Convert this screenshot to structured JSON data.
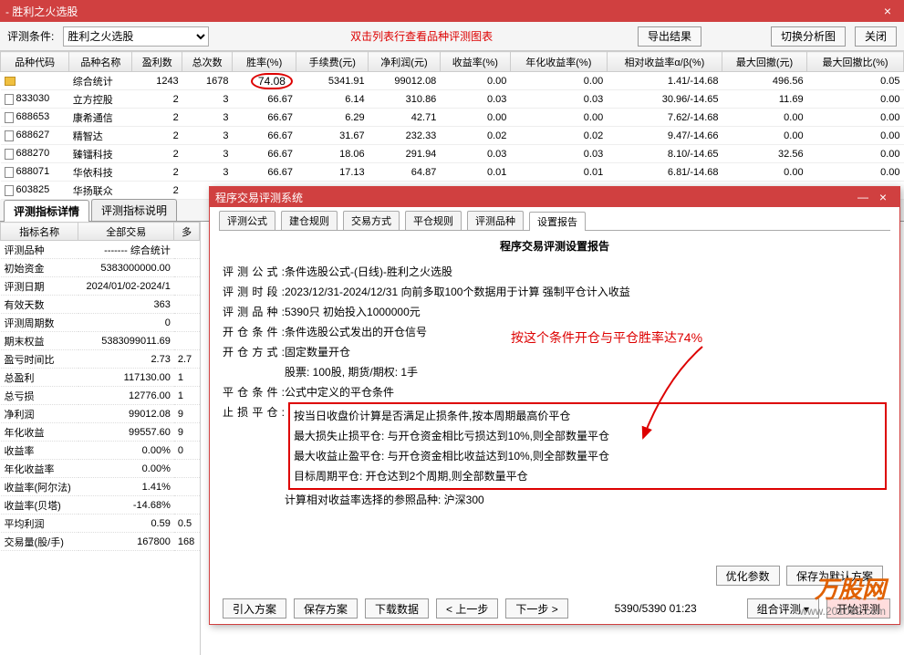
{
  "window": {
    "title": "- 胜利之火选股",
    "close": "×"
  },
  "toolbar": {
    "cond_label": "评测条件:",
    "dropdown": "胜利之火选股",
    "hint": "双击列表行查看品种评测图表",
    "export": "导出结果",
    "switch": "切换分析图",
    "close": "关闭"
  },
  "columns": [
    "品种代码",
    "品种名称",
    "盈利数",
    "总次数",
    "胜率(%)",
    "手续费(元)",
    "净利润(元)",
    "收益率(%)",
    "年化收益率(%)",
    "相对收益率α/β(%)",
    "最大回撤(元)",
    "最大回撤比(%)"
  ],
  "rows": [
    {
      "ico": "folder",
      "code": "",
      "name": "综合统计",
      "win": "1243",
      "total": "1678",
      "rate": "74.08",
      "fee": "5341.91",
      "profit": "99012.08",
      "ret": "0.00",
      "ann": "0.00",
      "rel": "1.41/-14.68",
      "dd": "496.56",
      "ddr": "0.05",
      "hl": true
    },
    {
      "ico": "file",
      "code": "833030",
      "name": "立方控股",
      "win": "2",
      "total": "3",
      "rate": "66.67",
      "fee": "6.14",
      "profit": "310.86",
      "ret": "0.03",
      "ann": "0.03",
      "rel": "30.96/-14.65",
      "dd": "11.69",
      "ddr": "0.00"
    },
    {
      "ico": "file",
      "code": "688653",
      "name": "康希通信",
      "win": "2",
      "total": "3",
      "rate": "66.67",
      "fee": "6.29",
      "profit": "42.71",
      "ret": "0.00",
      "ann": "0.00",
      "rel": "7.62/-14.68",
      "dd": "0.00",
      "ddr": "0.00"
    },
    {
      "ico": "file",
      "code": "688627",
      "name": "精智达",
      "win": "2",
      "total": "3",
      "rate": "66.67",
      "fee": "31.67",
      "profit": "232.33",
      "ret": "0.02",
      "ann": "0.02",
      "rel": "9.47/-14.66",
      "dd": "0.00",
      "ddr": "0.00"
    },
    {
      "ico": "file",
      "code": "688270",
      "name": "臻镭科技",
      "win": "2",
      "total": "3",
      "rate": "66.67",
      "fee": "18.06",
      "profit": "291.94",
      "ret": "0.03",
      "ann": "0.03",
      "rel": "8.10/-14.65",
      "dd": "32.56",
      "ddr": "0.00"
    },
    {
      "ico": "file",
      "code": "688071",
      "name": "华依科技",
      "win": "2",
      "total": "3",
      "rate": "66.67",
      "fee": "17.13",
      "profit": "64.87",
      "ret": "0.01",
      "ann": "0.01",
      "rel": "6.81/-14.68",
      "dd": "0.00",
      "ddr": "0.00"
    },
    {
      "ico": "file",
      "code": "603825",
      "name": "华扬联众",
      "win": "2",
      "total": "3",
      "rate": "66.67",
      "fee": "5.18",
      "profit": "97.82",
      "ret": "0.01",
      "ann": "0.01",
      "rel": "13.04/-14.67",
      "dd": "13.69",
      "ddr": "0.00"
    }
  ],
  "lower_tabs": {
    "a": "评测指标详情",
    "b": "评测指标说明"
  },
  "left_cols": [
    "指标名称",
    "全部交易",
    "多"
  ],
  "left_rows": [
    [
      "评测品种",
      "------- 综合统计"
    ],
    [
      "初始资金",
      "5383000000.00"
    ],
    [
      "评测日期",
      "2024/01/02-2024/1"
    ],
    [
      "有效天数",
      "363"
    ],
    [
      "评测周期数",
      "0"
    ],
    [
      "期末权益",
      "5383099011.69"
    ],
    [
      "盈亏时间比",
      "2.73",
      "2.7"
    ],
    [
      "总盈利",
      "117130.00",
      "1"
    ],
    [
      "总亏损",
      "12776.00",
      "1"
    ],
    [
      "净利润",
      "99012.08",
      "9"
    ],
    [
      "年化收益",
      "99557.60",
      "9"
    ],
    [
      "收益率",
      "0.00%",
      "0"
    ],
    [
      "年化收益率",
      "0.00%"
    ],
    [
      "收益率(阿尔法)",
      "1.41%"
    ],
    [
      "收益率(贝塔)",
      "-14.68%"
    ],
    [
      "平均利润",
      "0.59",
      "0.5"
    ],
    [
      "交易量(股/手)",
      "167800",
      "168"
    ]
  ],
  "dialog": {
    "title": "程序交易评测系统",
    "tabs": [
      "评测公式",
      "建仓规则",
      "交易方式",
      "平仓规则",
      "评测品种",
      "设置报告"
    ],
    "active_tab": 5,
    "report_title": "程序交易评测设置报告",
    "rows": [
      {
        "k": "评测公式:",
        "v": "条件选股公式-(日线)-胜利之火选股"
      },
      {
        "k": "评测时段:",
        "v": "2023/12/31-2024/12/31 向前多取100个数据用于计算 强制平仓计入收益"
      },
      {
        "k": "评测品种:",
        "v": "5390只 初始投入1000000元"
      },
      {
        "k": "开仓条件:",
        "v": "条件选股公式发出的开仓信号"
      },
      {
        "k": "开仓方式:",
        "v": "固定数量开仓"
      },
      {
        "k": "",
        "v": "股票: 100股, 期货/期权: 1手"
      },
      {
        "k": "平仓条件:",
        "v": "公式中定义的平仓条件"
      }
    ],
    "stop_label": "止损平仓:",
    "stop_rows": [
      "按当日收盘价计算是否满足止损条件,按本周期最高价平仓",
      "最大损失止损平仓: 与开仓资金相比亏损达到10%,则全部数量平仓",
      "最大收益止盈平仓: 与开仓资金相比收益达到10%,则全部数量平仓",
      "目标周期平仓: 开仓达到2个周期,则全部数量平仓"
    ],
    "ref": "计算相对收益率选择的参照品种: 沪深300",
    "opt": "优化参数",
    "save_def": "保存为默认方案",
    "footer": {
      "load": "引入方案",
      "save": "保存方案",
      "dl": "下载数据",
      "prev": "< 上一步",
      "next": "下一步 >",
      "status": "5390/5390 01:23",
      "combo": "组合评测 ▾",
      "start": "开始评测"
    }
  },
  "callout": "按这个条件开仓与平仓胜率达74%",
  "wm": {
    "logo": "万股网",
    "url": "www.201082.com"
  }
}
